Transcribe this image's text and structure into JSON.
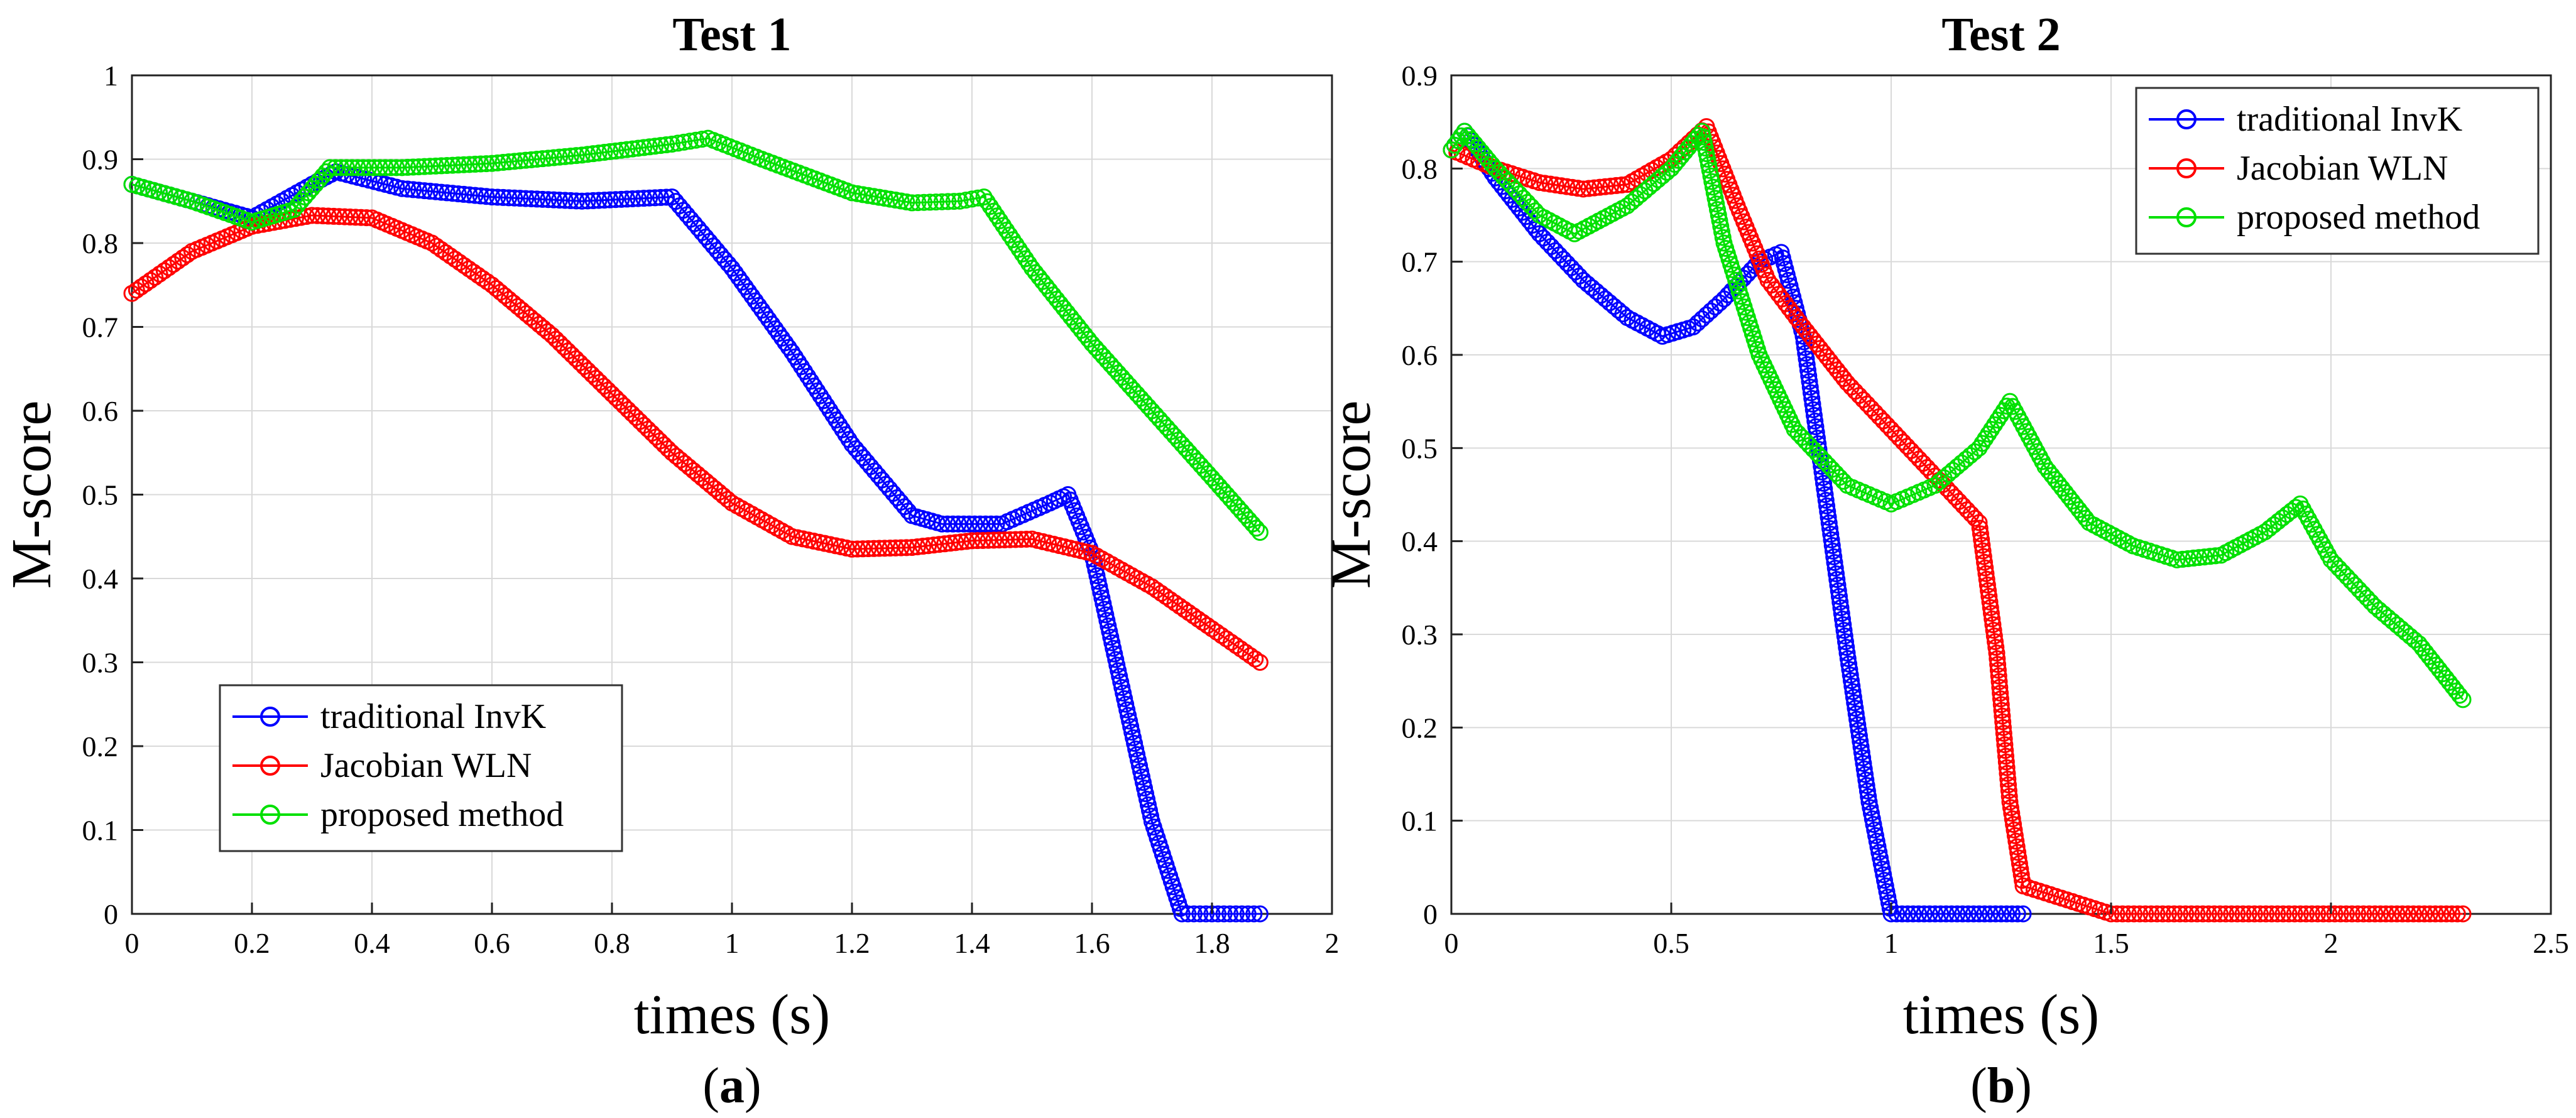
{
  "chart_data": [
    {
      "type": "scatter",
      "title": "Test 1",
      "xlabel": "times (s)",
      "ylabel": "M-score",
      "panel_label": {
        "open": "(",
        "letter": "a",
        "close": ")"
      },
      "xlim": [
        0,
        2
      ],
      "ylim": [
        0,
        1
      ],
      "xticks": [
        0,
        0.2,
        0.4,
        0.6,
        0.8,
        1,
        1.2,
        1.4,
        1.6,
        1.8,
        2
      ],
      "xtick_labels": [
        "0",
        "0.2",
        "0.4",
        "0.6",
        "0.8",
        "1",
        "1.2",
        "1.4",
        "1.6",
        "1.8",
        "2"
      ],
      "yticks": [
        0,
        0.1,
        0.2,
        0.3,
        0.4,
        0.5,
        0.6,
        0.7,
        0.8,
        0.9,
        1
      ],
      "ytick_labels": [
        "0",
        "0.1",
        "0.2",
        "0.3",
        "0.4",
        "0.5",
        "0.6",
        "0.7",
        "0.8",
        "0.9",
        "1"
      ],
      "grid": true,
      "legend_position": "bottom-left",
      "series": [
        {
          "name": "traditional InvK",
          "color": "#0000ff",
          "x": [
            0,
            0.1,
            0.2,
            0.3,
            0.34,
            0.45,
            0.6,
            0.75,
            0.9,
            1.0,
            1.1,
            1.2,
            1.3,
            1.35,
            1.45,
            1.53,
            1.56,
            1.6,
            1.65,
            1.7,
            1.75,
            1.8,
            1.88
          ],
          "y": [
            0.87,
            0.85,
            0.83,
            0.87,
            0.885,
            0.865,
            0.855,
            0.85,
            0.855,
            0.77,
            0.67,
            0.56,
            0.475,
            0.465,
            0.465,
            0.49,
            0.5,
            0.43,
            0.27,
            0.11,
            0.0,
            0.0,
            0.0
          ]
        },
        {
          "name": "Jacobian WLN",
          "color": "#ff0000",
          "x": [
            0,
            0.1,
            0.2,
            0.3,
            0.4,
            0.5,
            0.6,
            0.7,
            0.8,
            0.9,
            1.0,
            1.1,
            1.2,
            1.3,
            1.4,
            1.5,
            1.6,
            1.7,
            1.8,
            1.88
          ],
          "y": [
            0.74,
            0.79,
            0.82,
            0.833,
            0.83,
            0.8,
            0.75,
            0.69,
            0.62,
            0.55,
            0.49,
            0.45,
            0.435,
            0.437,
            0.445,
            0.447,
            0.43,
            0.39,
            0.34,
            0.3
          ]
        },
        {
          "name": "proposed method",
          "color": "#00e000",
          "x": [
            0,
            0.1,
            0.2,
            0.27,
            0.33,
            0.45,
            0.6,
            0.75,
            0.9,
            0.96,
            1.05,
            1.2,
            1.3,
            1.38,
            1.42,
            1.5,
            1.6,
            1.7,
            1.8,
            1.88
          ],
          "y": [
            0.87,
            0.85,
            0.825,
            0.84,
            0.89,
            0.89,
            0.895,
            0.905,
            0.918,
            0.925,
            0.9,
            0.86,
            0.848,
            0.85,
            0.855,
            0.77,
            0.68,
            0.6,
            0.52,
            0.455
          ]
        }
      ]
    },
    {
      "type": "scatter",
      "title": "Test 2",
      "xlabel": "times (s)",
      "ylabel": "M-score",
      "panel_label": {
        "open": "(",
        "letter": "b",
        "close": ")"
      },
      "xlim": [
        0,
        2.5
      ],
      "ylim": [
        0,
        0.9
      ],
      "xticks": [
        0,
        0.5,
        1,
        1.5,
        2,
        2.5
      ],
      "xtick_labels": [
        "0",
        "0.5",
        "1",
        "1.5",
        "2",
        "2.5"
      ],
      "yticks": [
        0,
        0.1,
        0.2,
        0.3,
        0.4,
        0.5,
        0.6,
        0.7,
        0.8,
        0.9
      ],
      "ytick_labels": [
        "0",
        "0.1",
        "0.2",
        "0.3",
        "0.4",
        "0.5",
        "0.6",
        "0.7",
        "0.8",
        "0.9"
      ],
      "grid": true,
      "legend_position": "top-right",
      "series": [
        {
          "name": "traditional InvK",
          "color": "#0000ff",
          "x": [
            0,
            0.03,
            0.1,
            0.2,
            0.3,
            0.4,
            0.48,
            0.55,
            0.62,
            0.7,
            0.75,
            0.8,
            0.85,
            0.9,
            0.95,
            1.0,
            1.1,
            1.2,
            1.3
          ],
          "y": [
            0.82,
            0.84,
            0.79,
            0.73,
            0.68,
            0.64,
            0.62,
            0.63,
            0.66,
            0.7,
            0.71,
            0.62,
            0.45,
            0.28,
            0.12,
            0.0,
            0.0,
            0.0,
            0.0
          ]
        },
        {
          "name": "Jacobian WLN",
          "color": "#ff0000",
          "x": [
            0,
            0.1,
            0.2,
            0.3,
            0.4,
            0.5,
            0.58,
            0.65,
            0.72,
            0.8,
            0.9,
            1.0,
            1.1,
            1.2,
            1.24,
            1.27,
            1.3,
            1.5,
            1.8,
            2.1,
            2.3
          ],
          "y": [
            0.82,
            0.8,
            0.785,
            0.778,
            0.783,
            0.81,
            0.845,
            0.76,
            0.68,
            0.63,
            0.57,
            0.52,
            0.47,
            0.42,
            0.28,
            0.12,
            0.03,
            0.0,
            0.0,
            0.0,
            0.0
          ]
        },
        {
          "name": "proposed method",
          "color": "#00e000",
          "x": [
            0,
            0.03,
            0.1,
            0.2,
            0.28,
            0.4,
            0.5,
            0.57,
            0.62,
            0.7,
            0.78,
            0.9,
            1.0,
            1.1,
            1.2,
            1.27,
            1.35,
            1.45,
            1.55,
            1.65,
            1.75,
            1.85,
            1.93,
            2.0,
            2.1,
            2.2,
            2.3
          ],
          "y": [
            0.82,
            0.84,
            0.8,
            0.75,
            0.73,
            0.76,
            0.8,
            0.84,
            0.72,
            0.6,
            0.52,
            0.46,
            0.44,
            0.46,
            0.5,
            0.55,
            0.48,
            0.42,
            0.395,
            0.38,
            0.385,
            0.41,
            0.44,
            0.38,
            0.33,
            0.29,
            0.23
          ]
        }
      ]
    }
  ]
}
